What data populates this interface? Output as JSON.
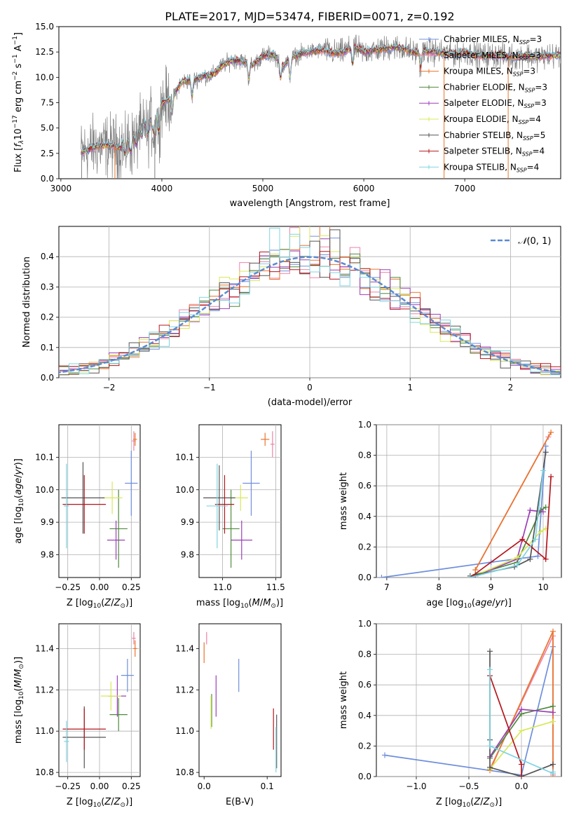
{
  "figure": {
    "title": "PLATE=2017, MJD=53474, FIBERID=0071, z=0.192"
  },
  "colors": {
    "Chabrier MILES": "#6f8fdc",
    "Salpeter MILES": "#ee82a8",
    "Kroupa MILES": "#e8752c",
    "Chabrier ELODIE": "#4f8a3c",
    "Salpeter ELODIE": "#9b3fb8",
    "Kroupa ELODIE": "#d8e85a",
    "Chabrier STELIB": "#555555",
    "Salpeter STELIB": "#b5161d",
    "Kroupa STELIB": "#7fd4e2",
    "data": "#7f7f7f",
    "normal": "#5b8ad0"
  },
  "chart_data": [
    {
      "id": "spectrum",
      "type": "line",
      "title": "PLATE=2017, MJD=53474, FIBERID=0071, z=0.192",
      "xlabel": "wavelength [Angstrom, rest frame]",
      "ylabel": "Flux [f_λ 10^-17 erg cm^-2 s^-1 A^-1]",
      "xlim": [
        2980,
        7950
      ],
      "ylim": [
        0,
        15
      ],
      "xticks": [
        3000,
        4000,
        5000,
        6000,
        7000
      ],
      "yticks": [
        0.0,
        2.5,
        5.0,
        7.5,
        10.0,
        12.5,
        15.0
      ],
      "legend_position": "right",
      "legend": [
        {
          "label": "Chabrier MILES, N",
          "sub": "SSP",
          "suffix": "=3"
        },
        {
          "label": "Salpeter MILES, N",
          "sub": "SSP",
          "suffix": "=3"
        },
        {
          "label": "Kroupa MILES, N",
          "sub": "SSP",
          "suffix": "=3"
        },
        {
          "label": "Chabrier ELODIE, N",
          "sub": "SSP",
          "suffix": "=3"
        },
        {
          "label": "Salpeter ELODIE, N",
          "sub": "SSP",
          "suffix": "=3"
        },
        {
          "label": "Kroupa ELODIE, N",
          "sub": "SSP",
          "suffix": "=4"
        },
        {
          "label": "Chabrier STELIB, N",
          "sub": "SSP",
          "suffix": "=5"
        },
        {
          "label": "Salpeter STELIB, N",
          "sub": "SSP",
          "suffix": "=4"
        },
        {
          "label": "Kroupa STELIB, N",
          "sub": "SSP",
          "suffix": "=4"
        }
      ],
      "continuum": {
        "x": [
          3200,
          3350,
          3500,
          3600,
          3700,
          3800,
          3900,
          4000,
          4100,
          4200,
          4300,
          4400,
          4500,
          4600,
          4700,
          4800,
          4900,
          5000,
          5100,
          5200,
          5300,
          5400,
          5500,
          5600,
          5700,
          5800,
          5900,
          6000,
          6100,
          6200,
          6300,
          6400,
          6500,
          6600,
          6700,
          6800,
          6900,
          7000,
          7100,
          7200,
          7300,
          7400,
          7500,
          7600,
          7700,
          7800,
          7900
        ],
        "y": [
          2.6,
          3.2,
          3.3,
          3.0,
          3.3,
          4.8,
          5.1,
          7.5,
          8.0,
          9.6,
          9.7,
          10.1,
          10.2,
          11.2,
          11.7,
          11.6,
          11.2,
          12.1,
          12.3,
          11.2,
          12.0,
          12.4,
          12.6,
          12.7,
          12.4,
          12.5,
          13.0,
          12.5,
          12.7,
          12.8,
          13.0,
          12.8,
          12.4,
          12.6,
          12.5,
          12.4,
          12.3,
          12.5,
          12.2,
          12.1,
          12.2,
          12.1,
          12.0,
          12.2,
          12.0,
          12.1,
          12.2
        ]
      },
      "absorption_features": [
        3934,
        3969,
        4102,
        4300,
        4861,
        5175,
        5270,
        5890,
        6563
      ]
    },
    {
      "id": "residuals",
      "type": "histogram",
      "xlabel": "(data-model)/error",
      "ylabel": "Normed distribution",
      "xlim": [
        -2.5,
        2.5
      ],
      "ylim": [
        0,
        0.5
      ],
      "xticks": [
        -2,
        -1,
        0,
        1,
        2
      ],
      "yticks": [
        0.0,
        0.1,
        0.2,
        0.3,
        0.4
      ],
      "legend_position": "top-right",
      "normal_label": "N(0, 1)",
      "bin_width": 0.1
    },
    {
      "id": "z-age",
      "type": "scatter",
      "xlabel": "Z [log10(Z/Z⊙)]",
      "ylabel": "age [log10(age/yr)]",
      "xlim": [
        -0.32,
        0.32
      ],
      "ylim": [
        9.73,
        10.2
      ],
      "xticks": [
        -0.25,
        0.0,
        0.25
      ],
      "yticks": [
        9.8,
        9.9,
        10.0,
        10.1
      ],
      "points": [
        {
          "model": "Chabrier MILES",
          "x": 0.25,
          "y": 10.02,
          "xerr": 0.05,
          "yerr": 0.1
        },
        {
          "model": "Salpeter MILES",
          "x": 0.27,
          "y": 10.15,
          "xerr": 0.015,
          "yerr": 0.03
        },
        {
          "model": "Kroupa MILES",
          "x": 0.28,
          "y": 10.155,
          "xerr": 0.015,
          "yerr": 0.02
        },
        {
          "model": "Chabrier ELODIE",
          "x": 0.15,
          "y": 9.88,
          "xerr": 0.07,
          "yerr": 0.12
        },
        {
          "model": "Salpeter ELODIE",
          "x": 0.13,
          "y": 9.845,
          "xerr": 0.07,
          "yerr": 0.06
        },
        {
          "model": "Kroupa ELODIE",
          "x": 0.1,
          "y": 9.975,
          "xerr": 0.08,
          "yerr": 0.05
        },
        {
          "model": "Chabrier STELIB",
          "x": -0.13,
          "y": 9.975,
          "xerr": 0.17,
          "yerr": 0.11
        },
        {
          "model": "Salpeter STELIB",
          "x": -0.12,
          "y": 9.955,
          "xerr": 0.17,
          "yerr": 0.09
        },
        {
          "model": "Kroupa STELIB",
          "x": -0.26,
          "y": 9.95,
          "xerr": 0.02,
          "yerr": 0.13
        }
      ]
    },
    {
      "id": "mass-age",
      "type": "scatter",
      "xlabel": "mass [log10(M/M⊙)]",
      "ylabel": "",
      "xlim": [
        10.78,
        11.55
      ],
      "ylim": [
        9.73,
        10.2
      ],
      "xticks": [
        11.0,
        11.5
      ],
      "yticks": [
        9.8,
        9.9,
        10.0,
        10.1
      ],
      "points": [
        {
          "model": "Chabrier MILES",
          "x": 11.27,
          "y": 10.02,
          "xerr": 0.08,
          "yerr": 0.1
        },
        {
          "model": "Salpeter MILES",
          "x": 11.47,
          "y": 10.14,
          "xerr": 0.02,
          "yerr": 0.04
        },
        {
          "model": "Kroupa MILES",
          "x": 11.4,
          "y": 10.155,
          "xerr": 0.04,
          "yerr": 0.02
        },
        {
          "model": "Chabrier ELODIE",
          "x": 11.08,
          "y": 9.88,
          "xerr": 0.08,
          "yerr": 0.12
        },
        {
          "model": "Salpeter ELODIE",
          "x": 11.18,
          "y": 9.845,
          "xerr": 0.1,
          "yerr": 0.06
        },
        {
          "model": "Kroupa ELODIE",
          "x": 11.17,
          "y": 9.975,
          "xerr": 0.07,
          "yerr": 0.04
        },
        {
          "model": "Chabrier STELIB",
          "x": 10.97,
          "y": 9.975,
          "xerr": 0.15,
          "yerr": 0.1
        },
        {
          "model": "Salpeter STELIB",
          "x": 11.02,
          "y": 9.955,
          "xerr": 0.09,
          "yerr": 0.09
        },
        {
          "model": "Kroupa STELIB",
          "x": 10.95,
          "y": 9.95,
          "xerr": 0.1,
          "yerr": 0.13
        }
      ]
    },
    {
      "id": "age-weight",
      "type": "line",
      "xlabel": "age [log10(age/yr)]",
      "ylabel": "mass weight",
      "xlim": [
        6.8,
        10.35
      ],
      "ylim": [
        0,
        1
      ],
      "xticks": [
        7,
        8,
        9,
        10
      ],
      "yticks": [
        0.0,
        0.2,
        0.4,
        0.6,
        0.8,
        1.0
      ],
      "series": [
        {
          "model": "Chabrier MILES",
          "x": [
            6.9,
            9.0,
            9.9,
            10.05
          ],
          "y": [
            0.0,
            0.1,
            0.14,
            0.86
          ]
        },
        {
          "model": "Salpeter MILES",
          "x": [
            8.7,
            10.1
          ],
          "y": [
            0.05,
            0.92
          ]
        },
        {
          "model": "Kroupa MILES",
          "x": [
            8.7,
            10.15
          ],
          "y": [
            0.05,
            0.95
          ]
        },
        {
          "model": "Chabrier ELODIE",
          "x": [
            8.7,
            9.5,
            9.95,
            10.05
          ],
          "y": [
            0.02,
            0.1,
            0.44,
            0.46
          ]
        },
        {
          "model": "Salpeter ELODIE",
          "x": [
            8.7,
            9.5,
            9.75,
            10.0
          ],
          "y": [
            0.01,
            0.12,
            0.44,
            0.43
          ]
        },
        {
          "model": "Kroupa ELODIE",
          "x": [
            8.6,
            9.5,
            9.95,
            10.05
          ],
          "y": [
            0.0,
            0.13,
            0.3,
            0.32
          ]
        },
        {
          "model": "Chabrier STELIB",
          "x": [
            8.6,
            9.45,
            9.75,
            10.05
          ],
          "y": [
            0.01,
            0.07,
            0.12,
            0.82
          ]
        },
        {
          "model": "Salpeter STELIB",
          "x": [
            8.6,
            9.6,
            10.05,
            10.15
          ],
          "y": [
            0.0,
            0.25,
            0.12,
            0.66
          ]
        },
        {
          "model": "Kroupa STELIB",
          "x": [
            8.6,
            9.5,
            9.85,
            10.0
          ],
          "y": [
            0.0,
            0.08,
            0.25,
            0.7
          ]
        }
      ]
    },
    {
      "id": "z-mass",
      "type": "scatter",
      "xlabel": "Z [log10(Z/Z⊙)]",
      "ylabel": "mass [log10(M/M⊙)]",
      "xlim": [
        -0.32,
        0.32
      ],
      "ylim": [
        10.78,
        11.52
      ],
      "xticks": [
        -0.25,
        0.0,
        0.25
      ],
      "yticks": [
        10.8,
        11.0,
        11.2,
        11.4
      ],
      "points": [
        {
          "model": "Chabrier MILES",
          "x": 0.22,
          "y": 11.27,
          "xerr": 0.05,
          "yerr": 0.08
        },
        {
          "model": "Salpeter MILES",
          "x": 0.27,
          "y": 11.45,
          "xerr": 0.015,
          "yerr": 0.03
        },
        {
          "model": "Kroupa MILES",
          "x": 0.28,
          "y": 11.4,
          "xerr": 0.015,
          "yerr": 0.04
        },
        {
          "model": "Chabrier ELODIE",
          "x": 0.15,
          "y": 11.08,
          "xerr": 0.07,
          "yerr": 0.08
        },
        {
          "model": "Salpeter ELODIE",
          "x": 0.14,
          "y": 11.17,
          "xerr": 0.07,
          "yerr": 0.1
        },
        {
          "model": "Kroupa ELODIE",
          "x": 0.09,
          "y": 11.17,
          "xerr": 0.08,
          "yerr": 0.07
        },
        {
          "model": "Chabrier STELIB",
          "x": -0.12,
          "y": 10.97,
          "xerr": 0.17,
          "yerr": 0.15
        },
        {
          "model": "Salpeter STELIB",
          "x": -0.12,
          "y": 11.01,
          "xerr": 0.17,
          "yerr": 0.1
        },
        {
          "model": "Kroupa STELIB",
          "x": -0.26,
          "y": 10.95,
          "xerr": 0.02,
          "yerr": 0.1
        }
      ]
    },
    {
      "id": "ebv-mass",
      "type": "scatter",
      "xlabel": "E(B-V)",
      "ylabel": "",
      "xlim": [
        -0.008,
        0.122
      ],
      "ylim": [
        10.78,
        11.52
      ],
      "xticks": [
        0.0,
        0.1
      ],
      "yticks": [
        10.8,
        11.0,
        11.2,
        11.4
      ],
      "points": [
        {
          "model": "Chabrier MILES",
          "x": 0.055,
          "y": 11.27,
          "yerr": 0.08
        },
        {
          "model": "Salpeter MILES",
          "x": 0.004,
          "y": 11.45,
          "yerr": 0.03
        },
        {
          "model": "Kroupa MILES",
          "x": 0.0,
          "y": 11.38,
          "yerr": 0.05
        },
        {
          "model": "Chabrier ELODIE",
          "x": 0.012,
          "y": 11.1,
          "yerr": 0.08
        },
        {
          "model": "Salpeter ELODIE",
          "x": 0.019,
          "y": 11.17,
          "yerr": 0.1
        },
        {
          "model": "Kroupa ELODIE",
          "x": 0.011,
          "y": 11.09,
          "yerr": 0.08
        },
        {
          "model": "Chabrier STELIB",
          "x": 0.115,
          "y": 10.95,
          "yerr": 0.13
        },
        {
          "model": "Salpeter STELIB",
          "x": 0.11,
          "y": 11.01,
          "yerr": 0.1
        },
        {
          "model": "Kroupa STELIB",
          "x": 0.114,
          "y": 10.91,
          "yerr": 0.11
        }
      ]
    },
    {
      "id": "z-weight",
      "type": "line",
      "xlabel": "Z [log10(Z/Z⊙)]",
      "ylabel": "mass weight",
      "xlim": [
        -1.38,
        0.38
      ],
      "ylim": [
        0,
        1
      ],
      "xticks": [
        -1.0,
        -0.5,
        0.0
      ],
      "yticks": [
        0.0,
        0.2,
        0.4,
        0.6,
        0.8,
        1.0
      ],
      "series": [
        {
          "model": "Chabrier MILES",
          "x": [
            -1.3,
            0.0,
            0.3
          ],
          "y": [
            0.14,
            0.01,
            0.85
          ]
        },
        {
          "model": "Salpeter MILES",
          "x": [
            -0.3,
            0.3,
            0.3
          ],
          "y": [
            0.05,
            0.92,
            0.01
          ]
        },
        {
          "model": "Kroupa MILES",
          "x": [
            -0.3,
            0.3,
            0.3
          ],
          "y": [
            0.04,
            0.95,
            0.0
          ]
        },
        {
          "model": "Chabrier ELODIE",
          "x": [
            -0.3,
            0.0,
            0.3
          ],
          "y": [
            0.12,
            0.41,
            0.46
          ]
        },
        {
          "model": "Salpeter ELODIE",
          "x": [
            -0.3,
            0.0,
            0.3
          ],
          "y": [
            0.13,
            0.44,
            0.42
          ]
        },
        {
          "model": "Kroupa ELODIE",
          "x": [
            -0.3,
            0.0,
            0.3
          ],
          "y": [
            0.05,
            0.3,
            0.36
          ]
        },
        {
          "model": "Chabrier STELIB",
          "x": [
            -0.3,
            -0.3,
            -0.3,
            0.0,
            0.3
          ],
          "y": [
            0.82,
            0.24,
            0.06,
            0.0,
            0.08
          ]
        },
        {
          "model": "Salpeter STELIB",
          "x": [
            -0.3,
            0.0,
            0.0
          ],
          "y": [
            0.66,
            0.08,
            0.0
          ]
        },
        {
          "model": "Kroupa STELIB",
          "x": [
            -0.3,
            -0.3,
            0.3,
            0.3
          ],
          "y": [
            0.7,
            0.2,
            0.02,
            0.03
          ]
        }
      ]
    }
  ]
}
